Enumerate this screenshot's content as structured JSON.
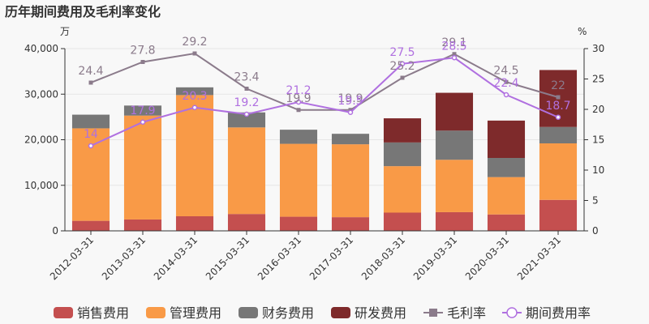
{
  "chart_data": {
    "type": "bar",
    "title": "历年期间费用及毛利率变化",
    "left_unit": "万",
    "right_unit": "%",
    "categories": [
      "2012-03-31",
      "2013-03-31",
      "2014-03-31",
      "2015-03-31",
      "2016-03-31",
      "2017-03-31",
      "2018-03-31",
      "2019-03-31",
      "2020-03-31",
      "2021-03-31"
    ],
    "ylim_left": [
      0,
      40000
    ],
    "yticks_left": [
      "0",
      "10,000",
      "20,000",
      "30,000",
      "40,000"
    ],
    "ylim_right": [
      0,
      30
    ],
    "yticks_right": [
      "0",
      "5",
      "10",
      "15",
      "20",
      "25",
      "30"
    ],
    "series": [
      {
        "name": "销售费用",
        "kind": "bar",
        "color": "#c44f4f",
        "values": [
          2200,
          2500,
          3200,
          3700,
          3100,
          3000,
          4000,
          4100,
          3600,
          6800
        ]
      },
      {
        "name": "管理费用",
        "kind": "bar",
        "color": "#f99a47",
        "values": [
          20300,
          22800,
          26600,
          19000,
          16000,
          16000,
          10200,
          11500,
          8200,
          12400
        ]
      },
      {
        "name": "财务费用",
        "kind": "bar",
        "color": "#777777",
        "values": [
          3000,
          2200,
          1700,
          3300,
          3100,
          2300,
          5200,
          6400,
          4200,
          3600
        ]
      },
      {
        "name": "研发费用",
        "kind": "bar",
        "color": "#7e2a2b",
        "values": [
          0,
          0,
          0,
          0,
          0,
          0,
          5300,
          8300,
          8200,
          12500
        ]
      },
      {
        "name": "毛利率",
        "kind": "line",
        "axis": "right",
        "color": "#8b7b8b",
        "marker": "square",
        "values": [
          24.4,
          27.8,
          29.2,
          23.4,
          19.9,
          19.9,
          25.2,
          29.1,
          24.5,
          22
        ],
        "labels": [
          "24.4",
          "27.8",
          "29.2",
          "23.4",
          "19.9",
          "19.9",
          "25.2",
          "29.1",
          "24.5",
          "22"
        ]
      },
      {
        "name": "期间费用率",
        "kind": "line",
        "axis": "right",
        "color": "#b070e0",
        "marker": "circle",
        "values": [
          14,
          17.9,
          20.3,
          19.2,
          21.2,
          19.5,
          27.5,
          28.5,
          22.4,
          18.7
        ],
        "labels": [
          "14",
          "17.9",
          "20.3",
          "19.2",
          "21.2",
          "19.5",
          "27.5",
          "28.5",
          "22.4",
          "18.7"
        ]
      }
    ],
    "legend_position": "bottom"
  }
}
